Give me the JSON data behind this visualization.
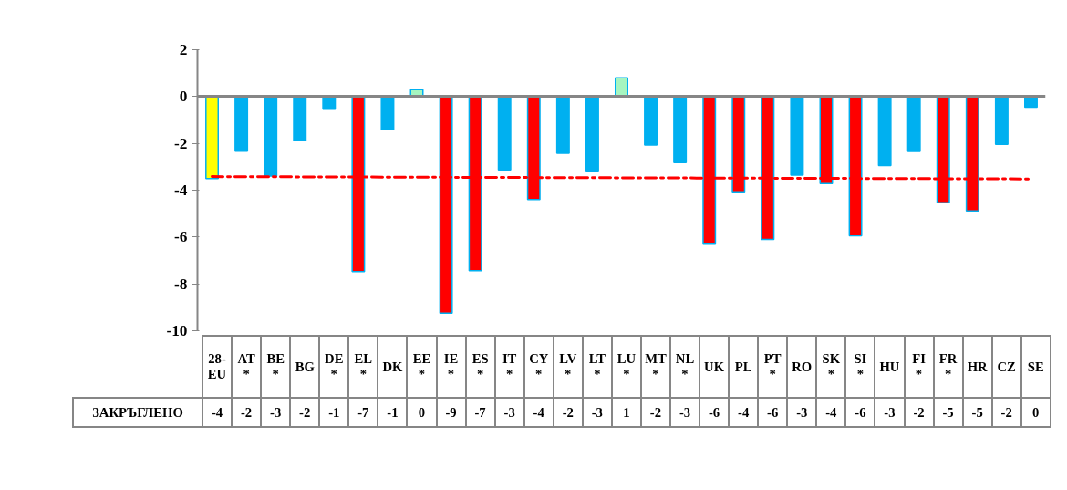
{
  "chart_data": {
    "type": "bar",
    "categories": [
      "28-EU",
      "AT*",
      "BE*",
      "BG",
      "DE*",
      "EL*",
      "DK",
      "EE*",
      "IE*",
      "ES*",
      "IT*",
      "CY*",
      "LV*",
      "LT*",
      "LU*",
      "MT*",
      "NL*",
      "UK",
      "PL",
      "PT*",
      "RO",
      "SK*",
      "SI*",
      "HU",
      "FI*",
      "FR*",
      "HR",
      "CZ",
      "SE"
    ],
    "series": [
      {
        "values": [
          -3.5,
          -2.33,
          -3.4,
          -1.88,
          -0.54,
          -7.48,
          -1.42,
          0.3,
          -9.25,
          -7.44,
          -3.13,
          -4.4,
          -2.42,
          -3.17,
          0.8,
          -2.07,
          -2.82,
          -6.27,
          -4.07,
          -6.1,
          -3.36,
          -3.72,
          -5.95,
          -2.95,
          -2.34,
          -4.54,
          -4.89,
          -2.04,
          -0.45
        ],
        "colors": [
          "#ffff00",
          "#00b0f0",
          "#00b0f0",
          "#00b0f0",
          "#00b0f0",
          "#ff0000",
          "#00b0f0",
          "#a6f5c0",
          "#ff0000",
          "#ff0000",
          "#00b0f0",
          "#ff0000",
          "#00b0f0",
          "#00b0f0",
          "#a6f5c0",
          "#00b0f0",
          "#00b0f0",
          "#ff0000",
          "#ff0000",
          "#ff0000",
          "#00b0f0",
          "#ff0000",
          "#ff0000",
          "#00b0f0",
          "#00b0f0",
          "#ff0000",
          "#ff0000",
          "#00b0f0",
          "#00b0f0"
        ],
        "value_labels": [
          "-4",
          "-2",
          "-3",
          "-2",
          "-1",
          "-7",
          "-1",
          "0",
          "-9",
          "-7",
          "-3",
          "-4",
          "-2",
          "-3",
          "1",
          "-2",
          "-3",
          "-6",
          "-4",
          "-6",
          "-3",
          "-4",
          "-6",
          "-3",
          "-2",
          "-5",
          "-5",
          "-2",
          "0"
        ]
      },
      {
        "type": "line",
        "x": [
          "28-EU",
          "SE"
        ],
        "values": [
          -3.42,
          -3.52
        ],
        "color": "#ff0000",
        "line_style": "dashdot"
      }
    ],
    "ylim": [
      -10,
      2
    ],
    "yticks": [
      2,
      0,
      -2,
      -4,
      -6,
      -8,
      -10
    ],
    "annotations": [
      "ЗАКРЪГЛЕНО"
    ]
  }
}
